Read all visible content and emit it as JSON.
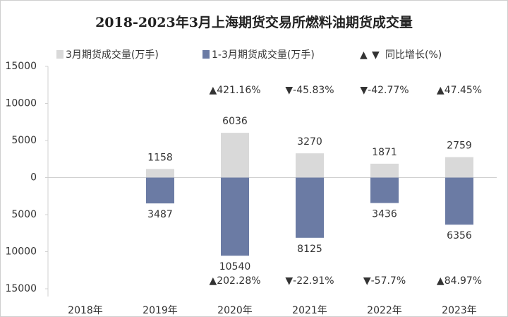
{
  "chart_data": {
    "type": "bar",
    "title": "2018-2023年3月上海期货交易所燃料油期货成交量",
    "categories": [
      "2018年",
      "2019年",
      "2020年",
      "2021年",
      "2022年",
      "2023年"
    ],
    "series": [
      {
        "name": "3月期货成交量(万手)",
        "color": "#d9d9d9",
        "values": [
          null,
          1158,
          6036,
          3270,
          1871,
          2759
        ]
      },
      {
        "name": "1-3月期货成交量(万手)",
        "color": "#6b7ba4",
        "values": [
          null,
          -3487,
          -10540,
          -8125,
          -3436,
          -6356
        ],
        "value_labels": [
          null,
          "3487",
          "10540",
          "8125",
          "3436",
          "6356"
        ]
      }
    ],
    "growth_legend": {
      "label": "同比增长(%)",
      "up_marker": "▲",
      "down_marker": "▼"
    },
    "up_color": "#3d6f9b",
    "down_color": "#f2b300",
    "growth_top": {
      "values": [
        null,
        null,
        421.16,
        -45.83,
        -42.77,
        47.45
      ],
      "value_labels": [
        null,
        null,
        "▲421.16%",
        "▼-45.83%",
        "▼-42.77%",
        "▲47.45%"
      ]
    },
    "growth_bottom": {
      "values": [
        null,
        null,
        202.28,
        -22.91,
        -57.7,
        84.97
      ],
      "value_labels": [
        null,
        null,
        "▲202.28%",
        "▼-22.91%",
        "▼-57.7%",
        "▲84.97%"
      ]
    },
    "ylim": [
      -15000,
      15000
    ],
    "yticks": [
      {
        "value": -15000,
        "label": "15000"
      },
      {
        "value": -10000,
        "label": "10000"
      },
      {
        "value": -5000,
        "label": "5000"
      },
      0,
      5000,
      10000,
      15000
    ],
    "grid": false
  }
}
